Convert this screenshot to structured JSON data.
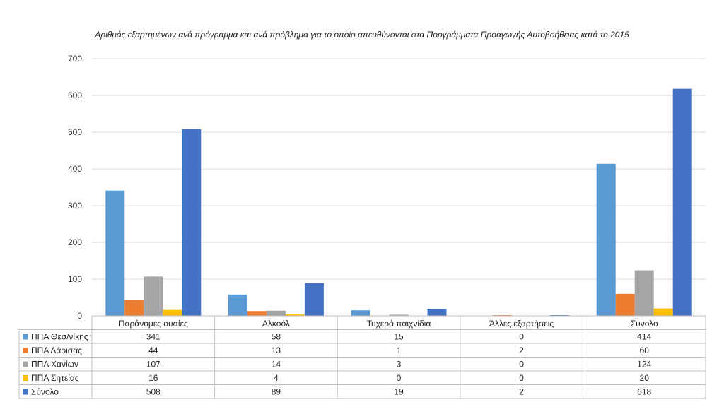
{
  "chart_data": {
    "type": "bar",
    "title": "Αριθμός εξαρτημένων ανά πρόγραμμα και ανά πρόβλημα για το οποίο απευθύνονται στα Προγράμματα Προαγωγής Αυτοβοήθειας κατά το 2015",
    "categories": [
      "Παράνομες ουσίες",
      "Αλκοόλ",
      "Τυχερά παιχνίδια",
      "Άλλες εξαρτήσεις",
      "Σύνολο"
    ],
    "ylim": [
      0,
      700
    ],
    "yticks": [
      0,
      100,
      200,
      300,
      400,
      500,
      600,
      700
    ],
    "grid": true,
    "legend": "data-table",
    "series": [
      {
        "name": "ΠΠΑ Θεσ/νίκης",
        "color": "#5B9BD5",
        "values": [
          341,
          58,
          15,
          0,
          414
        ]
      },
      {
        "name": "ΠΠΑ Λάρισας",
        "color": "#ED7D31",
        "values": [
          44,
          13,
          1,
          2,
          60
        ]
      },
      {
        "name": "ΠΠΑ Χανίων",
        "color": "#A5A5A5",
        "values": [
          107,
          14,
          3,
          0,
          124
        ]
      },
      {
        "name": "ΠΠΑ Σητείας",
        "color": "#FFC000",
        "values": [
          16,
          4,
          0,
          0,
          20
        ]
      },
      {
        "name": "Σύνολο",
        "color": "#4472C4",
        "values": [
          508,
          89,
          19,
          2,
          618
        ]
      }
    ]
  }
}
